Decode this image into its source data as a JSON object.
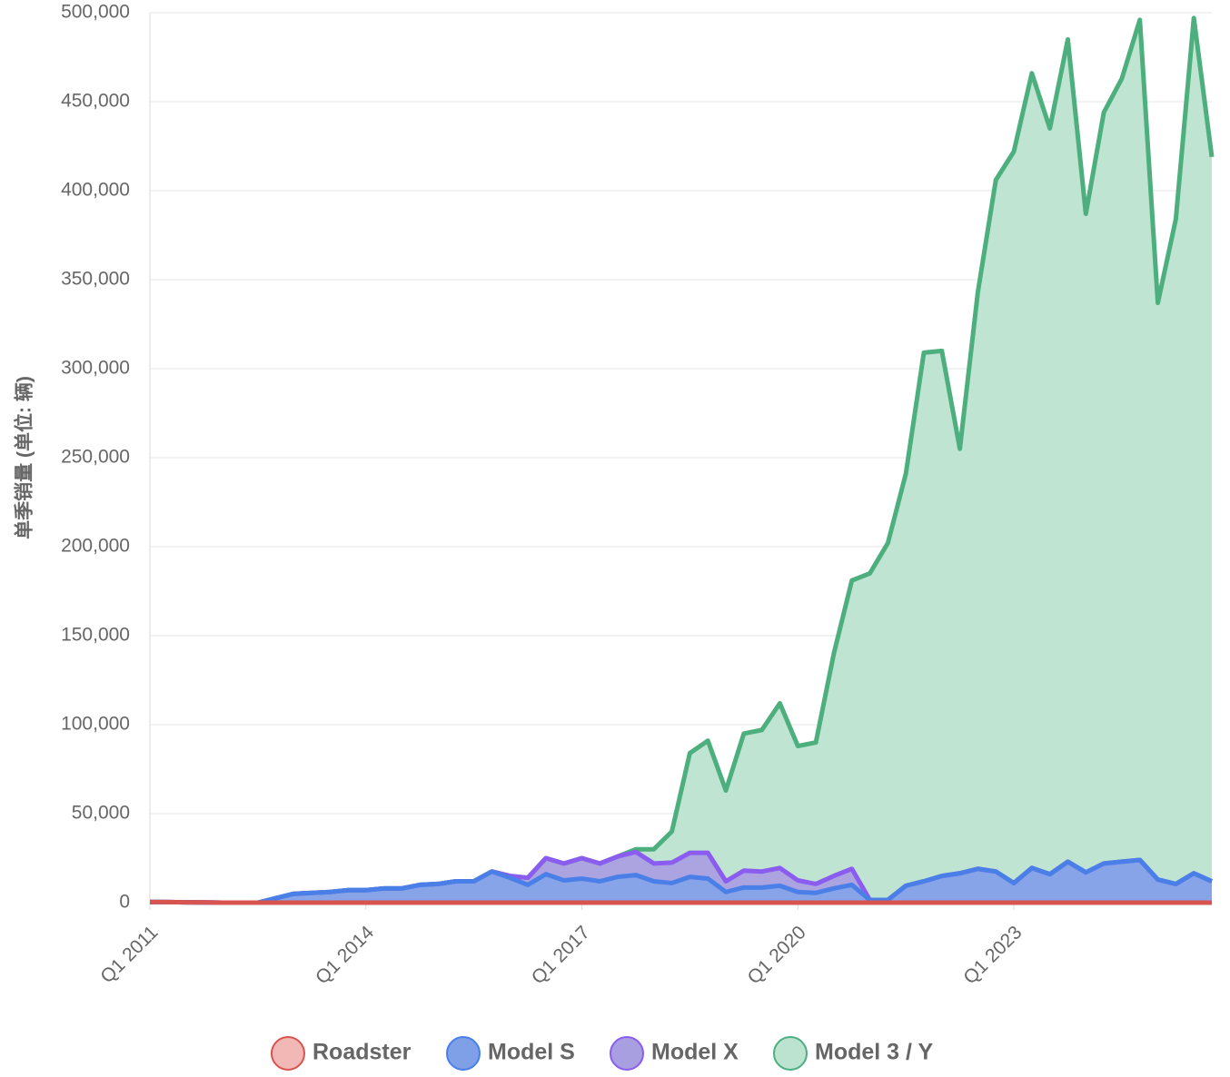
{
  "chart_data": {
    "type": "area",
    "stacked": true,
    "grid": true,
    "legend": "bottom",
    "y_label": "单季销量 (单位: 辆)",
    "categories": [
      "Q1 2011",
      null,
      null,
      null,
      null,
      null,
      null,
      null,
      null,
      null,
      null,
      null,
      "Q1 2014",
      null,
      null,
      null,
      null,
      null,
      null,
      null,
      null,
      null,
      null,
      null,
      "Q1 2017",
      null,
      null,
      null,
      null,
      null,
      null,
      null,
      null,
      null,
      null,
      null,
      "Q1 2020",
      null,
      null,
      null,
      null,
      null,
      null,
      null,
      null,
      null,
      null,
      null,
      "Q1 2023",
      null,
      null,
      null,
      null,
      null,
      null,
      null,
      null,
      null,
      null,
      null
    ],
    "ylim": [
      0,
      500000
    ],
    "yticks": [
      {
        "value": 0,
        "label": "0"
      },
      {
        "value": 50000,
        "label": "50,000"
      },
      {
        "value": 100000,
        "label": "100,000"
      },
      {
        "value": 150000,
        "label": "150,000"
      },
      {
        "value": 200000,
        "label": "200,000"
      },
      {
        "value": 250000,
        "label": "250,000"
      },
      {
        "value": 300000,
        "label": "300,000"
      },
      {
        "value": 350000,
        "label": "350,000"
      },
      {
        "value": 400000,
        "label": "400,000"
      },
      {
        "value": 450000,
        "label": "450,000"
      },
      {
        "value": 500000,
        "label": "500,000"
      }
    ],
    "series": [
      {
        "name": "Roadster",
        "color": "#d9534f",
        "fill": "#f2b8b6",
        "values": [
          400,
          300,
          200,
          100,
          0,
          0,
          0,
          0,
          0,
          0,
          0,
          0,
          0,
          0,
          0,
          0,
          0,
          0,
          0,
          0,
          0,
          0,
          0,
          0,
          0,
          0,
          0,
          0,
          0,
          0,
          0,
          0,
          0,
          0,
          0,
          0,
          0,
          0,
          0,
          0,
          0,
          0,
          0,
          0,
          0,
          0,
          0,
          0,
          0,
          0,
          0,
          0,
          0,
          0,
          0,
          0,
          0,
          0,
          0,
          0
        ]
      },
      {
        "name": "Model S",
        "color": "#4a7fe8",
        "fill": "#7f9fe6",
        "values": [
          0,
          0,
          0,
          0,
          0,
          0,
          0,
          2500,
          5000,
          5500,
          6000,
          7000,
          7000,
          8000,
          8000,
          10000,
          10500,
          12000,
          12000,
          17500,
          14000,
          10000,
          16000,
          12500,
          13500,
          12000,
          14500,
          15500,
          12000,
          11000,
          14500,
          13500,
          6000,
          8500,
          8500,
          9500,
          6000,
          5500,
          8000,
          10000,
          1500,
          1500,
          9500,
          12000,
          15000,
          16500,
          19000,
          17500,
          11000,
          19500,
          16000,
          23000,
          17000,
          22000,
          23000,
          24000,
          13000,
          10500,
          16500,
          12000
        ]
      },
      {
        "name": "Model X",
        "color": "#8b5cf0",
        "fill": "#a79fdf",
        "values": [
          0,
          0,
          0,
          0,
          0,
          0,
          0,
          0,
          0,
          0,
          0,
          0,
          0,
          0,
          0,
          0,
          0,
          0,
          0,
          0,
          1000,
          4000,
          9000,
          9500,
          11500,
          10000,
          11500,
          13000,
          10000,
          11500,
          13500,
          14500,
          6000,
          9500,
          9000,
          10000,
          6500,
          5000,
          7000,
          9000,
          0,
          0,
          0,
          0,
          0,
          0,
          0,
          0,
          0,
          0,
          0,
          0,
          0,
          0,
          0,
          0,
          0,
          0,
          0,
          0
        ]
      },
      {
        "name": "Model 3 / Y",
        "color": "#4caf7d",
        "fill": "#bce3cf",
        "values": [
          0,
          0,
          0,
          0,
          0,
          0,
          0,
          0,
          0,
          0,
          0,
          0,
          0,
          0,
          0,
          0,
          0,
          0,
          0,
          0,
          0,
          0,
          0,
          0,
          0,
          0,
          0,
          1500,
          8000,
          17500,
          56000,
          63000,
          51000,
          77000,
          79500,
          92500,
          75500,
          79500,
          125000,
          162000,
          183500,
          200500,
          231500,
          297000,
          295000,
          238500,
          324000,
          388500,
          411000,
          446500,
          419000,
          462000,
          370000,
          422000,
          440000,
          472000,
          324000,
          373500,
          480500,
          407000
        ]
      }
    ]
  }
}
